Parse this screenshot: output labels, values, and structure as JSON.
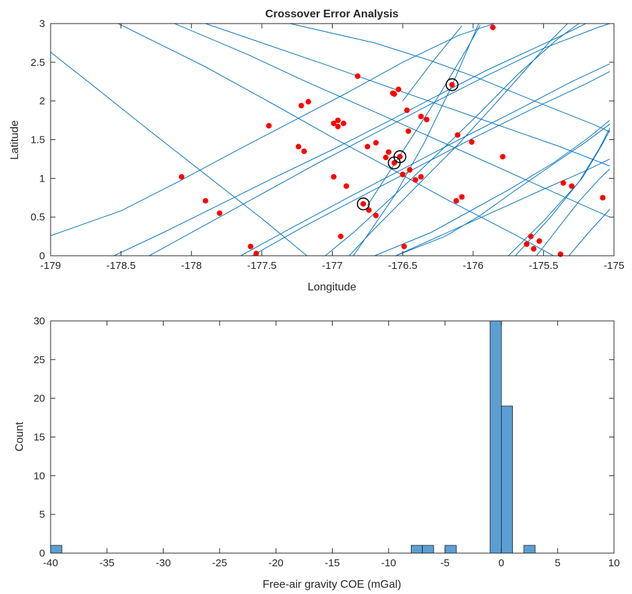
{
  "chart_data": [
    {
      "type": "line",
      "title": "Crossover Error Analysis",
      "xlabel": "Longitude",
      "ylabel": "Latitude",
      "xlim": [
        -179,
        -175
      ],
      "ylim": [
        0,
        3
      ],
      "xticks": [
        -179,
        -178.5,
        -178,
        -177.5,
        -177,
        -176.5,
        -176,
        -175.5,
        -175
      ],
      "xtick_labels": [
        "-179",
        "-178.5",
        "-178",
        "-177.5",
        "-177",
        "-176.5",
        "-176",
        "-175.5",
        "-175"
      ],
      "yticks": [
        0,
        0.5,
        1,
        1.5,
        2,
        2.5,
        3
      ],
      "ytick_labels": [
        "0",
        "0.5",
        "1",
        "1.5",
        "2",
        "2.5",
        "3"
      ],
      "grid": false,
      "colors": {
        "tracks": "#0072bd",
        "crossovers": "#ff0000",
        "highlight": "#000000"
      },
      "tracks": [
        [
          [
            -179.0,
            2.63
          ],
          [
            -178.7,
            2.2
          ],
          [
            -178.3,
            1.62
          ],
          [
            -177.9,
            1.05
          ],
          [
            -177.5,
            0.48
          ],
          [
            -177.18,
            0.0
          ]
        ],
        [
          [
            -178.52,
            3.0
          ],
          [
            -177.9,
            2.44
          ],
          [
            -177.43,
            1.97
          ],
          [
            -177.0,
            1.53
          ],
          [
            -176.6,
            1.14
          ],
          [
            -176.2,
            0.74
          ],
          [
            -175.7,
            0.27
          ],
          [
            -175.43,
            0.0
          ]
        ],
        [
          [
            -178.12,
            3.0
          ],
          [
            -177.6,
            2.6
          ],
          [
            -177.2,
            2.26
          ],
          [
            -176.65,
            1.82
          ],
          [
            -176.1,
            1.37
          ],
          [
            -175.6,
            0.96
          ],
          [
            -175.03,
            0.5
          ]
        ],
        [
          [
            -177.9,
            3.0
          ],
          [
            -177.5,
            2.75
          ],
          [
            -177.05,
            2.47
          ],
          [
            -176.6,
            2.18
          ],
          [
            -176.0,
            1.8
          ],
          [
            -175.4,
            1.42
          ],
          [
            -175.03,
            1.16
          ]
        ],
        [
          [
            -177.3,
            3.0
          ],
          [
            -176.7,
            2.75
          ],
          [
            -176.3,
            2.52
          ],
          [
            -175.97,
            2.3
          ],
          [
            -175.55,
            1.99
          ],
          [
            -175.15,
            1.7
          ],
          [
            -175.03,
            1.6
          ]
        ],
        [
          [
            -179.0,
            0.26
          ],
          [
            -178.5,
            0.58
          ],
          [
            -178.1,
            0.95
          ],
          [
            -177.7,
            1.34
          ],
          [
            -177.3,
            1.72
          ],
          [
            -176.9,
            2.1
          ],
          [
            -176.5,
            2.5
          ],
          [
            -176.1,
            2.85
          ],
          [
            -175.85,
            3.0
          ]
        ],
        [
          [
            -178.55,
            0.0
          ],
          [
            -178.2,
            0.3
          ],
          [
            -177.8,
            0.66
          ],
          [
            -177.4,
            1.02
          ],
          [
            -177.0,
            1.37
          ],
          [
            -176.6,
            1.74
          ],
          [
            -176.2,
            2.12
          ],
          [
            -175.9,
            2.4
          ],
          [
            -175.4,
            2.82
          ],
          [
            -175.2,
            3.0
          ]
        ],
        [
          [
            -178.3,
            0.0
          ],
          [
            -177.9,
            0.4
          ],
          [
            -177.5,
            0.8
          ],
          [
            -177.1,
            1.2
          ],
          [
            -176.7,
            1.58
          ],
          [
            -176.3,
            1.96
          ],
          [
            -175.9,
            2.33
          ],
          [
            -175.5,
            2.68
          ],
          [
            -175.1,
            2.96
          ],
          [
            -175.03,
            3.0
          ]
        ],
        [
          [
            -177.65,
            0.0
          ],
          [
            -177.3,
            0.35
          ],
          [
            -176.9,
            0.74
          ],
          [
            -176.5,
            1.12
          ],
          [
            -176.1,
            1.5
          ],
          [
            -175.7,
            1.87
          ],
          [
            -175.3,
            2.25
          ],
          [
            -175.03,
            2.48
          ]
        ],
        [
          [
            -177.57,
            0.0
          ],
          [
            -177.2,
            0.38
          ],
          [
            -176.8,
            0.76
          ],
          [
            -176.4,
            1.14
          ],
          [
            -176.0,
            1.52
          ],
          [
            -175.6,
            1.88
          ],
          [
            -175.2,
            2.22
          ],
          [
            -175.03,
            2.38
          ]
        ],
        [
          [
            -177.05,
            0.0
          ],
          [
            -176.85,
            0.3
          ],
          [
            -176.55,
            0.8
          ],
          [
            -176.25,
            1.32
          ],
          [
            -175.95,
            1.85
          ],
          [
            -175.68,
            2.35
          ],
          [
            -175.4,
            2.8
          ],
          [
            -175.25,
            3.0
          ]
        ],
        [
          [
            -176.88,
            0.0
          ],
          [
            -176.7,
            0.35
          ],
          [
            -176.4,
            0.9
          ],
          [
            -176.1,
            1.45
          ],
          [
            -175.85,
            1.95
          ],
          [
            -175.63,
            2.4
          ],
          [
            -175.45,
            2.78
          ],
          [
            -175.33,
            3.0
          ]
        ],
        [
          [
            -176.55,
            0.0
          ],
          [
            -176.0,
            0.45
          ],
          [
            -175.5,
            0.86
          ],
          [
            -175.2,
            1.1
          ],
          [
            -175.03,
            1.25
          ]
        ],
        [
          [
            -176.7,
            0.0
          ],
          [
            -176.3,
            0.3
          ],
          [
            -176.0,
            0.6
          ],
          [
            -175.75,
            0.85
          ],
          [
            -175.43,
            1.2
          ],
          [
            -175.2,
            1.5
          ],
          [
            -175.03,
            1.75
          ]
        ],
        [
          [
            -176.55,
            0.0
          ],
          [
            -176.2,
            0.25
          ],
          [
            -175.95,
            0.52
          ],
          [
            -175.72,
            0.82
          ],
          [
            -175.45,
            1.16
          ],
          [
            -175.2,
            1.47
          ],
          [
            -175.03,
            1.7
          ]
        ],
        [
          [
            -176.5,
            2.0
          ],
          [
            -176.3,
            2.48
          ],
          [
            -176.08,
            2.97
          ]
        ],
        [
          [
            -176.85,
            0.0
          ],
          [
            -176.55,
            0.8
          ],
          [
            -176.35,
            1.45
          ],
          [
            -176.15,
            2.2
          ],
          [
            -176.02,
            2.75
          ],
          [
            -175.96,
            3.0
          ]
        ],
        [
          [
            -176.75,
            0.65
          ],
          [
            -176.5,
            1.35
          ],
          [
            -176.25,
            2.05
          ],
          [
            -176.03,
            2.72
          ],
          [
            -175.95,
            2.98
          ]
        ],
        [
          [
            -175.75,
            0.0
          ],
          [
            -175.5,
            0.45
          ],
          [
            -175.25,
            0.95
          ],
          [
            -175.1,
            1.4
          ],
          [
            -175.03,
            1.65
          ]
        ],
        [
          [
            -175.7,
            0.0
          ],
          [
            -175.45,
            0.5
          ],
          [
            -175.22,
            1.02
          ],
          [
            -175.08,
            1.45
          ],
          [
            -175.03,
            1.62
          ]
        ],
        [
          [
            -175.55,
            0.0
          ],
          [
            -175.4,
            0.35
          ],
          [
            -175.25,
            0.7
          ],
          [
            -175.1,
            1.0
          ],
          [
            -175.03,
            1.12
          ]
        ],
        [
          [
            -175.32,
            0.0
          ],
          [
            -175.18,
            0.3
          ],
          [
            -175.05,
            0.56
          ],
          [
            -175.03,
            0.6
          ]
        ]
      ],
      "crossovers": [
        [
          -178.07,
          1.02
        ],
        [
          -177.9,
          0.71
        ],
        [
          -177.8,
          0.55
        ],
        [
          -177.58,
          0.12
        ],
        [
          -177.54,
          0.03
        ],
        [
          -177.45,
          1.68
        ],
        [
          -177.24,
          1.41
        ],
        [
          -177.22,
          1.94
        ],
        [
          -177.2,
          1.35
        ],
        [
          -177.17,
          1.99
        ],
        [
          -176.82,
          2.32
        ],
        [
          -176.99,
          1.71
        ],
        [
          -176.96,
          1.75
        ],
        [
          -176.96,
          1.67
        ],
        [
          -176.92,
          1.71
        ],
        [
          -176.99,
          1.02
        ],
        [
          -176.9,
          0.9
        ],
        [
          -176.94,
          0.25
        ],
        [
          -176.78,
          0.67
        ],
        [
          -176.74,
          0.59
        ],
        [
          -176.69,
          0.52
        ],
        [
          -176.75,
          1.41
        ],
        [
          -176.69,
          1.46
        ],
        [
          -176.62,
          1.27
        ],
        [
          -176.6,
          1.34
        ],
        [
          -176.57,
          2.1
        ],
        [
          -176.56,
          2.09
        ],
        [
          -176.53,
          2.15
        ],
        [
          -176.56,
          1.2
        ],
        [
          -176.52,
          1.28
        ],
        [
          -176.5,
          1.05
        ],
        [
          -176.49,
          0.12
        ],
        [
          -176.45,
          1.11
        ],
        [
          -176.41,
          0.98
        ],
        [
          -176.37,
          1.02
        ],
        [
          -176.47,
          1.88
        ],
        [
          -176.46,
          1.61
        ],
        [
          -176.37,
          1.8
        ],
        [
          -176.33,
          1.76
        ],
        [
          -176.15,
          2.21
        ],
        [
          -176.11,
          1.56
        ],
        [
          -176.12,
          0.71
        ],
        [
          -176.08,
          0.76
        ],
        [
          -176.01,
          1.47
        ],
        [
          -175.86,
          2.95
        ],
        [
          -175.79,
          1.28
        ],
        [
          -175.62,
          0.15
        ],
        [
          -175.59,
          0.25
        ],
        [
          -175.57,
          0.09
        ],
        [
          -175.53,
          0.19
        ],
        [
          -175.38,
          0.02
        ],
        [
          -175.36,
          0.94
        ],
        [
          -175.3,
          0.9
        ],
        [
          -175.08,
          0.75
        ]
      ],
      "highlighted": [
        [
          -176.15,
          2.21
        ],
        [
          -176.52,
          1.28
        ],
        [
          -176.56,
          1.2
        ],
        [
          -176.78,
          0.67
        ]
      ]
    },
    {
      "type": "bar",
      "title": "",
      "xlabel": "Free-air gravity COE (mGal)",
      "ylabel": "Count",
      "xlim": [
        -40,
        10
      ],
      "ylim": [
        0,
        30
      ],
      "xticks": [
        -40,
        -35,
        -30,
        -25,
        -20,
        -15,
        -10,
        -5,
        0,
        5,
        10
      ],
      "xtick_labels": [
        "-40",
        "-35",
        "-30",
        "-25",
        "-20",
        "-15",
        "-10",
        "-5",
        "0",
        "5",
        "10"
      ],
      "yticks": [
        0,
        5,
        10,
        15,
        20,
        25,
        30
      ],
      "ytick_labels": [
        "0",
        "5",
        "10",
        "15",
        "20",
        "25",
        "30"
      ],
      "grid": false,
      "bin_width": 1,
      "bar_color": "#5b9fd2",
      "bins": [
        {
          "left": -40,
          "count": 1
        },
        {
          "left": -8,
          "count": 1
        },
        {
          "left": -7,
          "count": 1
        },
        {
          "left": -5,
          "count": 1
        },
        {
          "left": -1,
          "count": 30
        },
        {
          "left": 0,
          "count": 19
        },
        {
          "left": 2,
          "count": 1
        }
      ]
    }
  ]
}
